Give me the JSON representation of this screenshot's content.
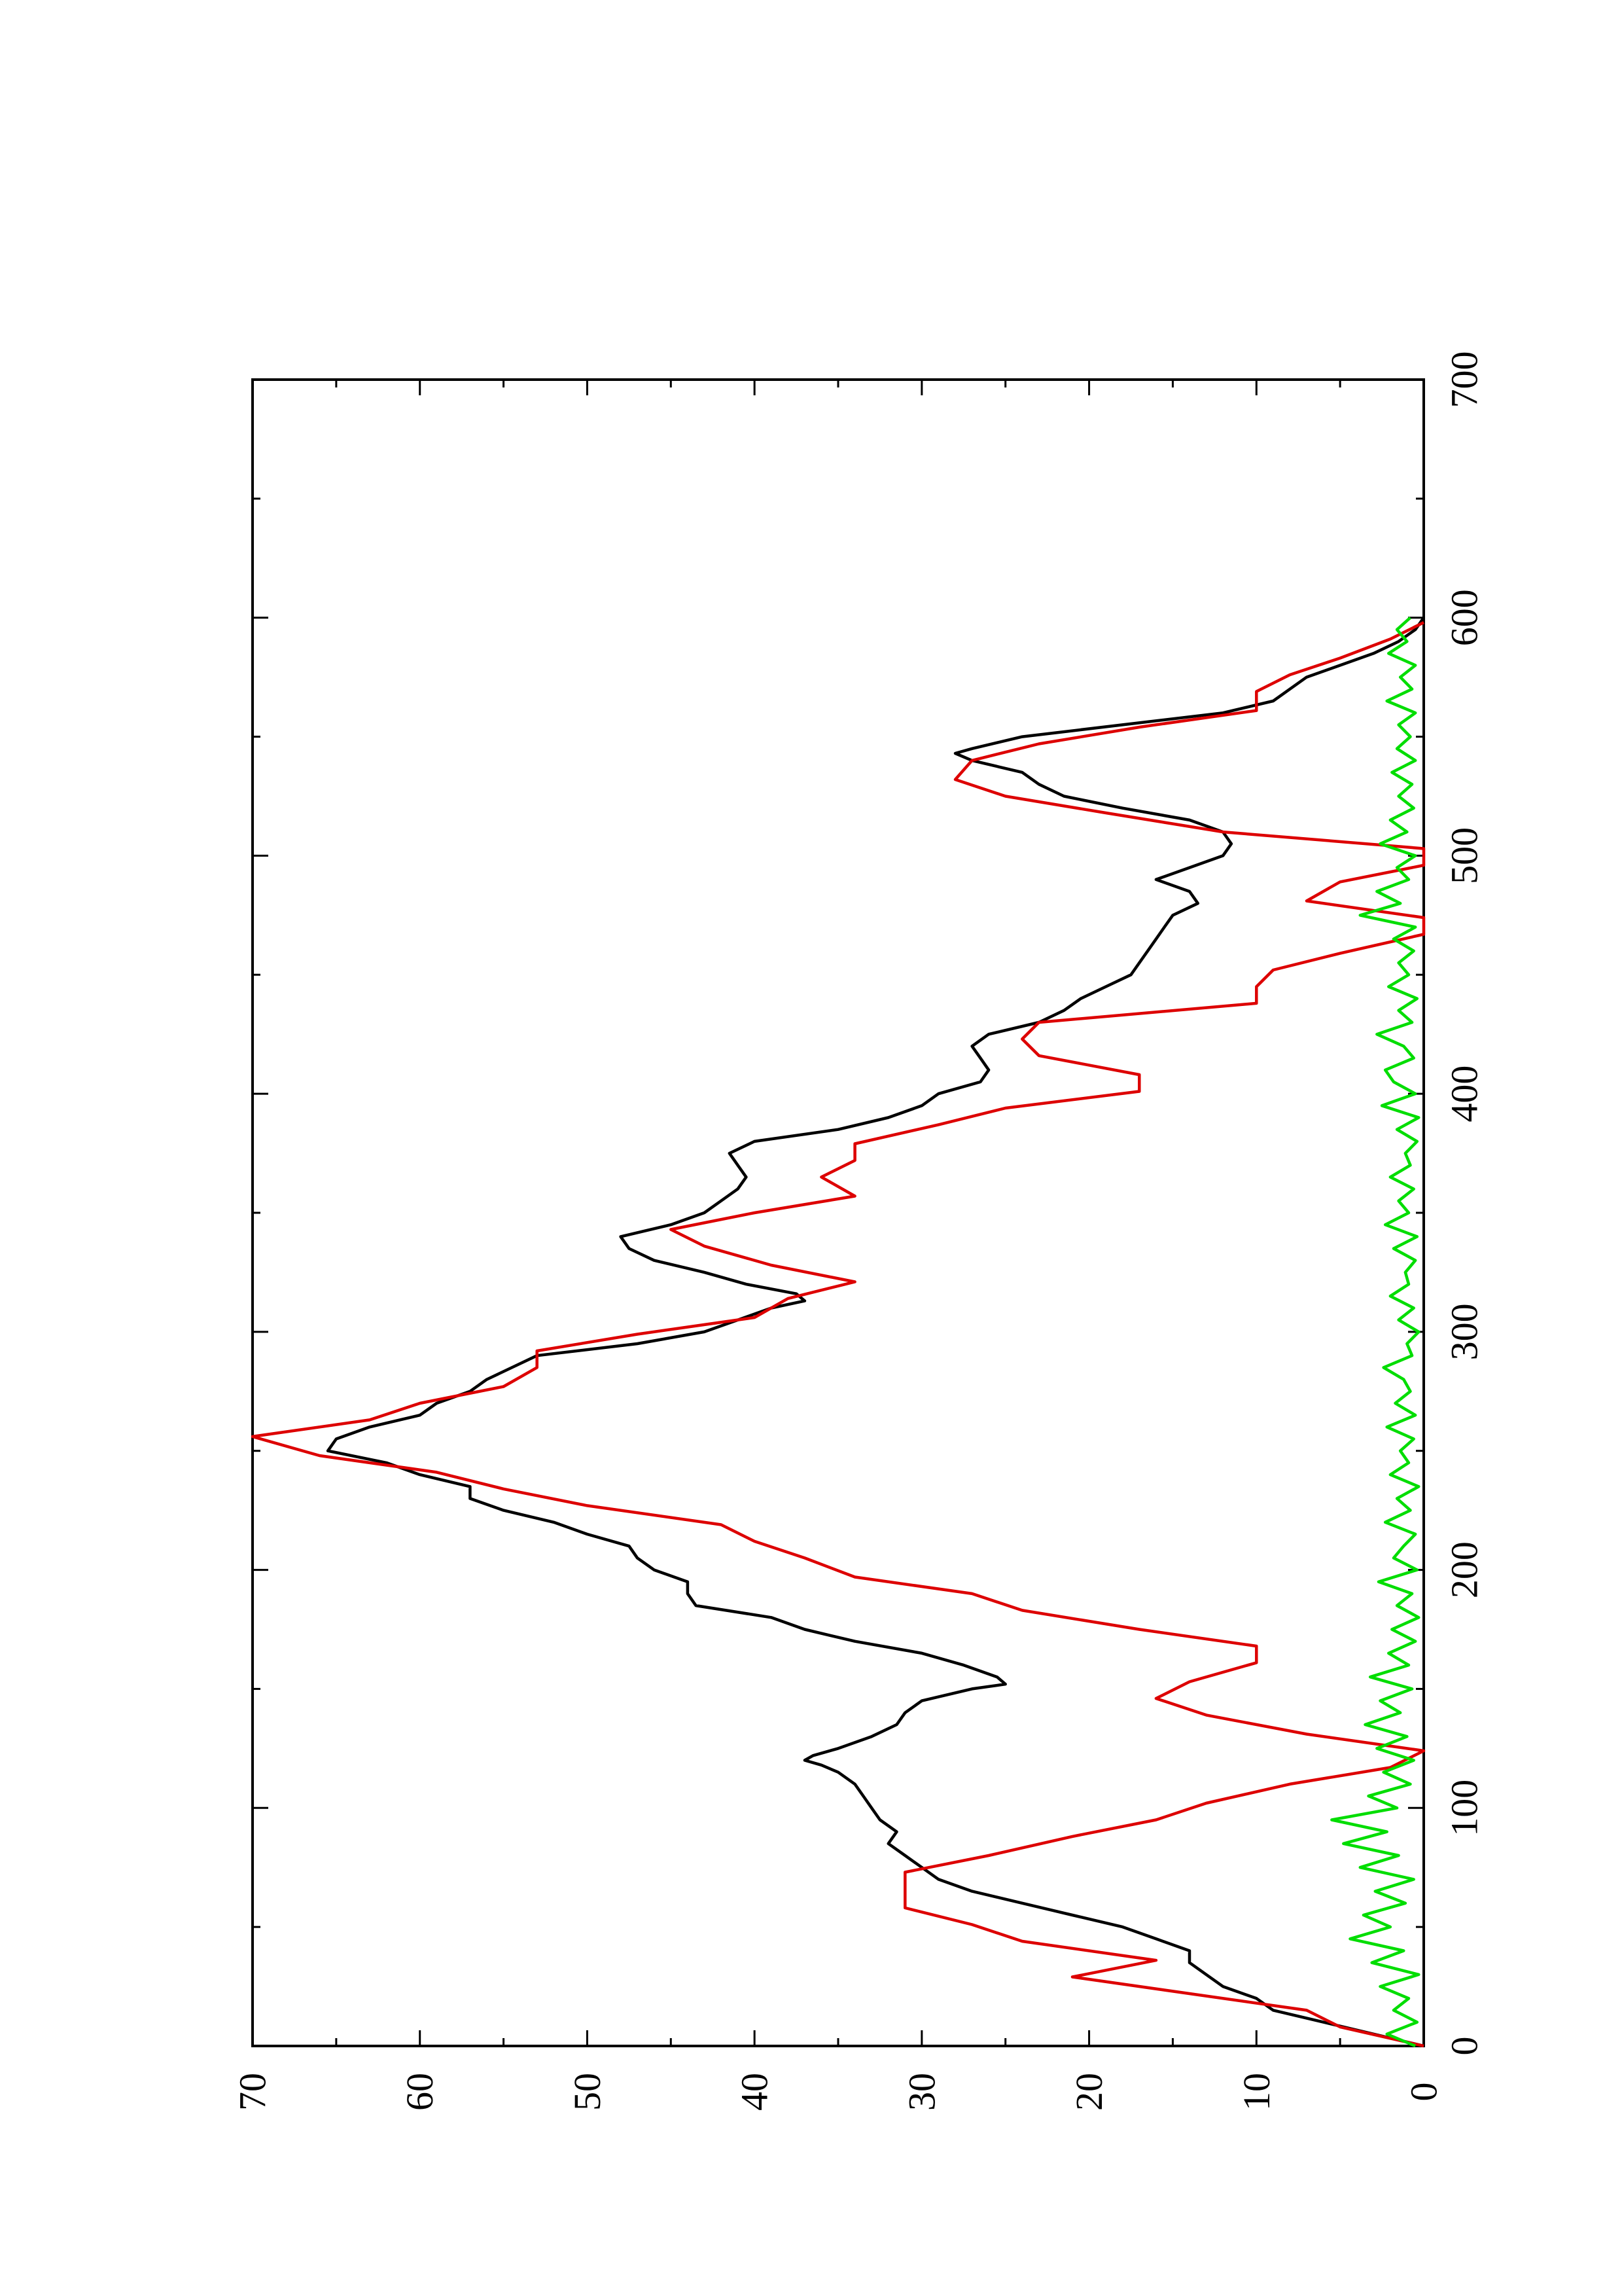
{
  "chart_data": {
    "type": "line",
    "orientation": "rotated-90-ccw",
    "title": "",
    "xlabel": "",
    "ylabel": "",
    "xlim": [
      0,
      700
    ],
    "ylim": [
      0,
      70
    ],
    "x_ticks": [
      0,
      100,
      200,
      300,
      400,
      500,
      600,
      700
    ],
    "x_minor_ticks": [
      50,
      150,
      250,
      350,
      450,
      550,
      650
    ],
    "y_ticks": [
      0,
      10,
      20,
      30,
      40,
      50,
      60,
      70
    ],
    "y_minor_ticks": [
      5,
      15,
      25,
      35,
      45,
      55,
      65
    ],
    "x_tick_labels": [
      "0",
      "100",
      "200",
      "300",
      "400",
      "500",
      "600",
      "700"
    ],
    "y_tick_labels": [
      "0",
      "10",
      "20",
      "30",
      "40",
      "50",
      "60",
      "70"
    ],
    "grid": false,
    "legend": "none",
    "series": [
      {
        "color": "#000000",
        "x": [
          0,
          5,
          10,
          15,
          20,
          25,
          30,
          35,
          40,
          45,
          50,
          55,
          60,
          65,
          70,
          75,
          80,
          85,
          90,
          95,
          100,
          105,
          110,
          115,
          118,
          120,
          122,
          125,
          130,
          135,
          140,
          145,
          150,
          152,
          155,
          160,
          165,
          170,
          175,
          180,
          185,
          190,
          195,
          200,
          205,
          210,
          215,
          220,
          225,
          230,
          235,
          240,
          245,
          250,
          255,
          260,
          265,
          270,
          275,
          280,
          285,
          290,
          295,
          300,
          305,
          310,
          313,
          316,
          320,
          325,
          330,
          335,
          340,
          345,
          350,
          355,
          360,
          365,
          370,
          375,
          380,
          385,
          390,
          395,
          400,
          405,
          410,
          415,
          420,
          425,
          430,
          435,
          440,
          445,
          450,
          455,
          460,
          465,
          470,
          475,
          480,
          485,
          490,
          495,
          500,
          505,
          510,
          515,
          520,
          525,
          530,
          535,
          540,
          543,
          545,
          550,
          555,
          560,
          565,
          570,
          575,
          580,
          585,
          590,
          595,
          600
        ],
        "y": [
          0,
          3,
          6,
          9,
          10,
          12,
          13,
          14,
          14,
          16,
          18,
          21,
          24,
          27,
          29,
          30,
          31,
          32,
          31.5,
          32.5,
          33,
          33.5,
          34,
          35,
          36,
          37,
          36.5,
          35,
          33,
          31.5,
          31,
          30,
          27,
          25,
          25.5,
          27.5,
          30,
          34,
          37,
          39,
          43.5,
          44,
          44,
          46,
          47,
          47.5,
          50,
          52,
          55,
          57,
          57,
          60,
          62,
          65.5,
          65,
          63,
          60,
          59,
          57,
          56,
          54.5,
          53,
          47,
          43,
          41,
          39,
          37,
          37.5,
          40.5,
          43,
          46,
          47.5,
          48,
          45,
          43,
          42,
          41,
          40.5,
          41,
          41.5,
          40,
          35,
          32,
          30,
          29,
          26.5,
          26,
          26.5,
          27,
          26,
          23,
          21.5,
          20.5,
          19,
          17.5,
          17,
          16.5,
          16,
          15.5,
          15,
          13.5,
          14,
          16,
          14,
          12,
          11.5,
          12,
          14,
          18,
          21.5,
          23,
          24,
          27,
          28,
          27,
          24,
          18,
          12,
          9,
          8,
          7,
          5,
          3,
          1.5,
          0.5,
          0
        ]
      },
      {
        "color": "#dd0000",
        "x": [
          0,
          8,
          15,
          22,
          29,
          36,
          44,
          51,
          58,
          66,
          73,
          80,
          88,
          95,
          102,
          110,
          117,
          124,
          131,
          139,
          146,
          153,
          161,
          168,
          175,
          183,
          190,
          197,
          205,
          212,
          219,
          227,
          234,
          241,
          248,
          256,
          263,
          270,
          277,
          285,
          292,
          299,
          306,
          314,
          321,
          328,
          336,
          343,
          350,
          357,
          365,
          372,
          379,
          387,
          394,
          401,
          408,
          416,
          423,
          430,
          438,
          445,
          452,
          459,
          467,
          474,
          481,
          489,
          496,
          503,
          510,
          518,
          525,
          532,
          540,
          547,
          554,
          561,
          569,
          576,
          583,
          591,
          598
        ],
        "y": [
          0,
          5,
          7,
          14,
          21,
          16,
          24,
          27,
          31,
          31,
          31,
          26,
          21,
          16,
          13,
          8,
          2,
          0,
          7,
          13,
          16,
          14,
          10,
          10,
          17,
          24,
          27,
          34,
          37,
          40,
          42,
          50,
          55,
          59,
          66,
          70,
          63,
          60,
          55,
          53,
          53,
          47,
          40,
          38,
          34,
          39,
          43,
          45,
          40,
          34,
          36,
          34,
          34,
          29,
          25,
          17,
          17,
          23,
          24,
          23,
          10,
          10,
          9,
          5,
          0,
          0,
          7,
          5,
          0,
          0,
          12,
          19,
          25,
          28,
          27,
          23,
          17,
          10,
          10,
          8,
          5,
          2,
          0
        ]
      },
      {
        "color": "#00dd00",
        "x": [
          0,
          5,
          10,
          15,
          20,
          25,
          30,
          35,
          40,
          45,
          50,
          55,
          60,
          65,
          70,
          75,
          80,
          85,
          90,
          95,
          100,
          105,
          110,
          115,
          120,
          125,
          130,
          135,
          140,
          145,
          150,
          155,
          160,
          165,
          170,
          175,
          180,
          185,
          190,
          195,
          200,
          205,
          210,
          215,
          220,
          225,
          230,
          235,
          240,
          245,
          250,
          255,
          260,
          265,
          270,
          275,
          280,
          285,
          290,
          295,
          300,
          305,
          310,
          315,
          320,
          325,
          330,
          335,
          340,
          345,
          350,
          355,
          360,
          365,
          370,
          375,
          380,
          385,
          390,
          395,
          400,
          405,
          410,
          415,
          420,
          425,
          430,
          435,
          440,
          445,
          450,
          455,
          460,
          465,
          470,
          475,
          480,
          485,
          490,
          495,
          500,
          505,
          510,
          515,
          520,
          525,
          530,
          535,
          540,
          545,
          550,
          555,
          560,
          565,
          570,
          575,
          580,
          585,
          590,
          595,
          600
        ],
        "y": [
          0.5,
          2.2,
          0.4,
          1.8,
          0.9,
          2.6,
          0.3,
          3.1,
          1.2,
          4.4,
          2.0,
          3.6,
          1.1,
          2.9,
          0.6,
          3.8,
          1.5,
          4.8,
          2.2,
          5.5,
          1.6,
          3.3,
          0.8,
          2.4,
          0.6,
          2.8,
          1.0,
          3.5,
          1.4,
          2.6,
          0.7,
          3.2,
          0.9,
          2.1,
          0.5,
          1.9,
          0.3,
          1.6,
          0.7,
          2.7,
          0.4,
          1.8,
          1.2,
          0.5,
          2.3,
          0.8,
          1.6,
          0.3,
          2.0,
          0.9,
          1.4,
          0.6,
          2.2,
          0.5,
          1.7,
          0.8,
          1.2,
          2.4,
          0.7,
          1.0,
          0.3,
          1.5,
          0.6,
          2.0,
          0.9,
          1.1,
          0.5,
          1.8,
          0.4,
          2.3,
          0.9,
          1.5,
          0.6,
          2.0,
          0.8,
          1.1,
          0.4,
          1.6,
          0.3,
          2.5,
          0.5,
          1.8,
          2.3,
          0.6,
          1.2,
          2.8,
          0.7,
          1.5,
          0.4,
          2.1,
          0.9,
          1.5,
          0.6,
          1.8,
          0.5,
          3.8,
          1.4,
          2.8,
          0.9,
          1.6,
          0.5,
          2.6,
          1.0,
          2.0,
          0.6,
          1.5,
          0.7,
          1.9,
          0.5,
          1.6,
          0.8,
          1.5,
          0.5,
          2.2,
          0.7,
          1.4,
          0.5,
          2.1,
          1.0,
          1.6,
          0.8
        ]
      }
    ]
  }
}
